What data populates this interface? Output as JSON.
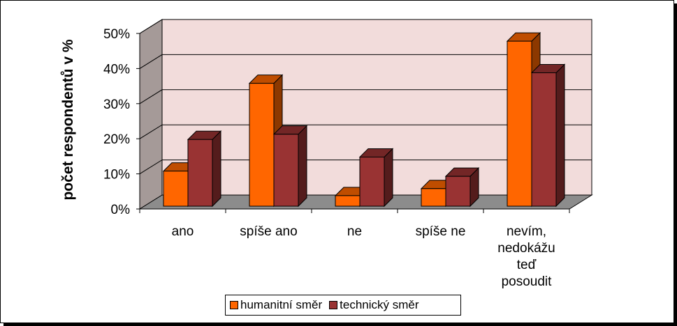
{
  "chart_data": {
    "type": "bar",
    "ylabel": "počet respondentů v %",
    "ylim": [
      0,
      50
    ],
    "yticks": [
      "0%",
      "10%",
      "20%",
      "30%",
      "40%",
      "50%"
    ],
    "grid": true,
    "legend_position": "bottom",
    "categories": [
      [
        "ano"
      ],
      [
        "spíše ano"
      ],
      [
        "ne"
      ],
      [
        "spíše ne"
      ],
      [
        "nevím,",
        "nedokážu",
        "teď",
        "posoudit"
      ]
    ],
    "series": [
      {
        "name": "humanitní  směr",
        "values": [
          10,
          35,
          3,
          5,
          47
        ],
        "color": "#ff6600"
      },
      {
        "name": "technický směr",
        "values": [
          19,
          20.5,
          14,
          8.5,
          38
        ],
        "color": "#993333"
      }
    ]
  }
}
